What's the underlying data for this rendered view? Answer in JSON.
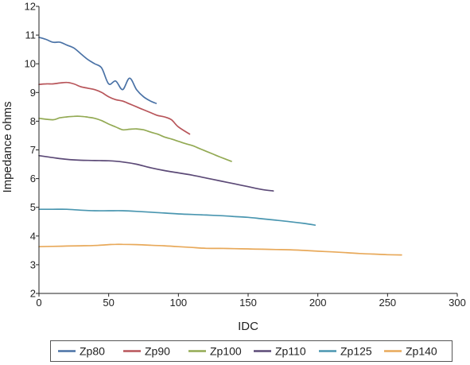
{
  "chart_data": {
    "type": "line",
    "title": "",
    "xlabel": "IDC",
    "ylabel": "Impedance ohms",
    "xlim": [
      0,
      300
    ],
    "ylim": [
      2,
      12
    ],
    "xticks": [
      0,
      50,
      100,
      150,
      200,
      250,
      300
    ],
    "yticks": [
      2,
      3,
      4,
      5,
      6,
      7,
      8,
      9,
      10,
      11,
      12
    ],
    "grid": false,
    "legend_position": "bottom",
    "series": [
      {
        "name": "Zp80",
        "color": "#4a72a6",
        "x": [
          0,
          5,
          10,
          15,
          20,
          25,
          30,
          35,
          40,
          45,
          50,
          55,
          60,
          65,
          70,
          75,
          80,
          84
        ],
        "y": [
          10.92,
          10.85,
          10.75,
          10.75,
          10.65,
          10.55,
          10.35,
          10.15,
          10.0,
          9.85,
          9.3,
          9.4,
          9.1,
          9.5,
          9.1,
          8.85,
          8.7,
          8.62
        ]
      },
      {
        "name": "Zp90",
        "color": "#b8555a",
        "x": [
          0,
          5,
          10,
          15,
          20,
          25,
          30,
          35,
          40,
          45,
          50,
          55,
          60,
          65,
          70,
          75,
          80,
          85,
          90,
          95,
          100,
          108
        ],
        "y": [
          9.28,
          9.3,
          9.3,
          9.33,
          9.35,
          9.3,
          9.2,
          9.15,
          9.1,
          9.0,
          8.85,
          8.75,
          8.7,
          8.6,
          8.5,
          8.4,
          8.3,
          8.2,
          8.15,
          8.05,
          7.8,
          7.55
        ]
      },
      {
        "name": "Zp100",
        "color": "#93aa54",
        "x": [
          0,
          10,
          15,
          20,
          25,
          30,
          35,
          40,
          45,
          50,
          55,
          60,
          65,
          70,
          75,
          80,
          85,
          90,
          95,
          100,
          105,
          110,
          115,
          120,
          125,
          130,
          138
        ],
        "y": [
          8.1,
          8.05,
          8.12,
          8.15,
          8.17,
          8.17,
          8.14,
          8.1,
          8.02,
          7.9,
          7.8,
          7.7,
          7.72,
          7.73,
          7.7,
          7.62,
          7.55,
          7.45,
          7.38,
          7.3,
          7.22,
          7.15,
          7.05,
          6.95,
          6.85,
          6.75,
          6.6
        ]
      },
      {
        "name": "Zp110",
        "color": "#5c4a77",
        "x": [
          0,
          10,
          20,
          30,
          40,
          50,
          60,
          70,
          80,
          90,
          100,
          110,
          120,
          130,
          140,
          150,
          160,
          168
        ],
        "y": [
          6.8,
          6.73,
          6.67,
          6.64,
          6.63,
          6.62,
          6.58,
          6.5,
          6.38,
          6.28,
          6.2,
          6.12,
          6.02,
          5.92,
          5.82,
          5.72,
          5.62,
          5.57
        ]
      },
      {
        "name": "Zp125",
        "color": "#4a96b0",
        "x": [
          0,
          10,
          20,
          30,
          40,
          50,
          60,
          70,
          80,
          90,
          100,
          110,
          120,
          130,
          140,
          150,
          160,
          170,
          180,
          190,
          198
        ],
        "y": [
          4.93,
          4.93,
          4.93,
          4.9,
          4.88,
          4.88,
          4.88,
          4.86,
          4.83,
          4.8,
          4.77,
          4.75,
          4.73,
          4.71,
          4.68,
          4.65,
          4.6,
          4.55,
          4.5,
          4.44,
          4.38
        ]
      },
      {
        "name": "Zp140",
        "color": "#e8a95a",
        "x": [
          0,
          10,
          20,
          30,
          40,
          50,
          55,
          60,
          70,
          80,
          90,
          100,
          110,
          120,
          130,
          140,
          150,
          160,
          170,
          180,
          190,
          200,
          210,
          220,
          230,
          240,
          250,
          260
        ],
        "y": [
          3.63,
          3.64,
          3.65,
          3.66,
          3.67,
          3.7,
          3.71,
          3.71,
          3.7,
          3.68,
          3.66,
          3.63,
          3.6,
          3.57,
          3.57,
          3.56,
          3.55,
          3.54,
          3.53,
          3.52,
          3.5,
          3.47,
          3.45,
          3.42,
          3.39,
          3.37,
          3.35,
          3.34
        ]
      }
    ]
  }
}
